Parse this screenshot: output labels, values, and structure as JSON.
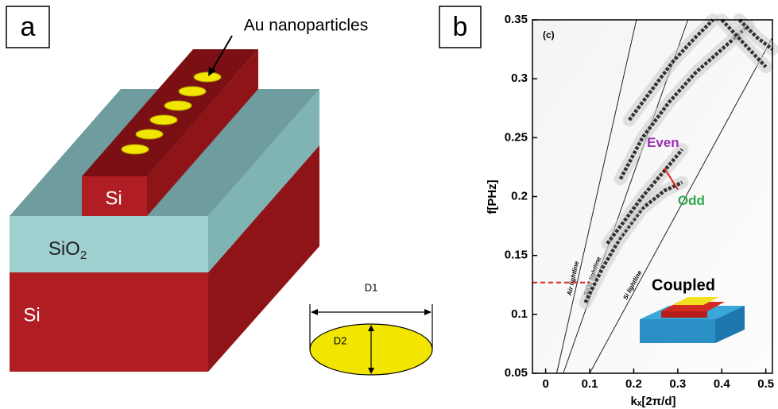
{
  "panel_a": {
    "label": "a",
    "nanoparticle_label": "Au nanoparticles",
    "ridge_label": "Si",
    "oxide_label": {
      "base": "SiO",
      "subscript": "2"
    },
    "substrate_label": "Si",
    "inset": {
      "width_label": "D1",
      "height_label": "D2"
    }
  },
  "chart_data": {
    "type": "line",
    "panel_label": "b",
    "inner_label": "(c)",
    "xlabel": "kₓ[2π/d]",
    "ylabel": "f[PHz]",
    "xlim": [
      -0.03,
      0.515
    ],
    "ylim": [
      0.05,
      0.35
    ],
    "xticks": [
      0,
      0.1,
      0.2,
      0.3,
      0.4,
      0.5
    ],
    "yticks": [
      0.05,
      0.1,
      0.15,
      0.2,
      0.25,
      0.3,
      0.35
    ],
    "series": [
      {
        "name": "Air lightline",
        "style": "lightline",
        "color": "#222222",
        "x": [
          0.025,
          0.206
        ],
        "values": [
          0.05,
          0.35
        ]
      },
      {
        "name": "SiO2 lightline",
        "style": "lightline",
        "color": "#222222",
        "x": [
          0.04,
          0.323
        ],
        "values": [
          0.05,
          0.35
        ]
      },
      {
        "name": "Si lightline",
        "style": "lightline",
        "color": "#222222",
        "x": [
          0.1,
          0.515
        ],
        "values": [
          0.05,
          0.335
        ]
      },
      {
        "style": "band",
        "color": "#333333",
        "x": [
          0.09,
          0.13,
          0.17,
          0.22,
          0.27,
          0.31
        ],
        "values": [
          0.11,
          0.14,
          0.165,
          0.19,
          0.205,
          0.212
        ]
      },
      {
        "style": "band",
        "color": "#333333",
        "x": [
          0.14,
          0.18,
          0.22,
          0.27,
          0.31
        ],
        "values": [
          0.16,
          0.18,
          0.2,
          0.222,
          0.24
        ]
      },
      {
        "style": "band",
        "color": "#333333",
        "x": [
          0.17,
          0.22,
          0.28,
          0.34,
          0.4,
          0.46
        ],
        "values": [
          0.215,
          0.25,
          0.28,
          0.305,
          0.325,
          0.345
        ]
      },
      {
        "style": "band",
        "color": "#333333",
        "x": [
          0.19,
          0.24,
          0.29,
          0.34,
          0.38
        ],
        "values": [
          0.265,
          0.29,
          0.315,
          0.335,
          0.35
        ]
      },
      {
        "style": "band",
        "color": "#333333",
        "x": [
          0.4,
          0.45,
          0.5
        ],
        "values": [
          0.35,
          0.33,
          0.31
        ]
      },
      {
        "style": "band",
        "color": "#333333",
        "x": [
          0.44,
          0.48,
          0.515
        ],
        "values": [
          0.35,
          0.335,
          0.325
        ]
      },
      {
        "style": "reference",
        "color": "#e02020",
        "x": [
          -0.03,
          0.1
        ],
        "values": [
          0.127,
          0.127
        ]
      },
      {
        "style": "marker",
        "color": "#e02020",
        "x": [
          0.27,
          0.3
        ],
        "values": [
          0.224,
          0.206
        ]
      }
    ],
    "annotations": [
      {
        "text": "Even",
        "color": "#9b30b0"
      },
      {
        "text": "Odd",
        "color": "#2ea84a"
      }
    ],
    "inset_label": "Coupled"
  }
}
